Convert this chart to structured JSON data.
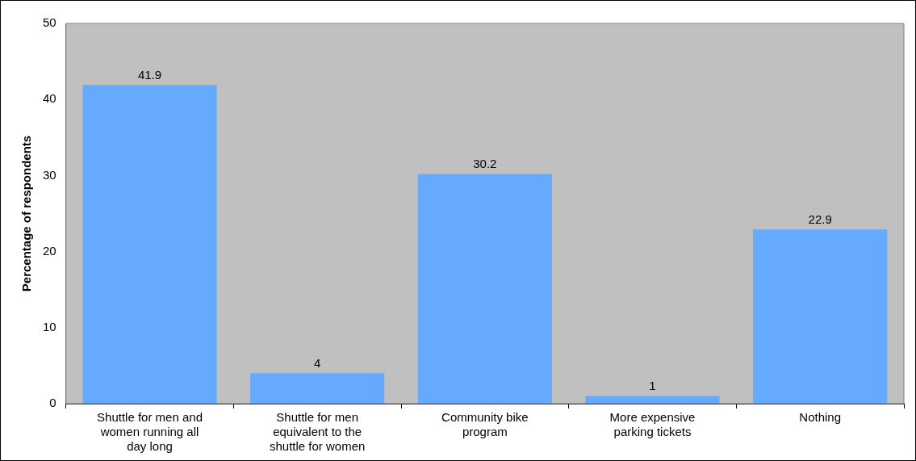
{
  "chart_data": {
    "type": "bar",
    "ylabel": "Percentage of respondents",
    "categories": [
      "Shuttle for men and women running all day long",
      "Shuttle for men equivalent to the shuttle for women",
      "Community bike program",
      "More expensive parking tickets",
      "Nothing"
    ],
    "values": [
      41.9,
      4,
      30.2,
      1,
      22.9
    ],
    "color": "#66aaff",
    "ylim": [
      0,
      50
    ],
    "yticks": [
      0,
      10,
      20,
      30,
      40,
      50
    ],
    "grid": false,
    "legend": false,
    "data_labels": true
  }
}
